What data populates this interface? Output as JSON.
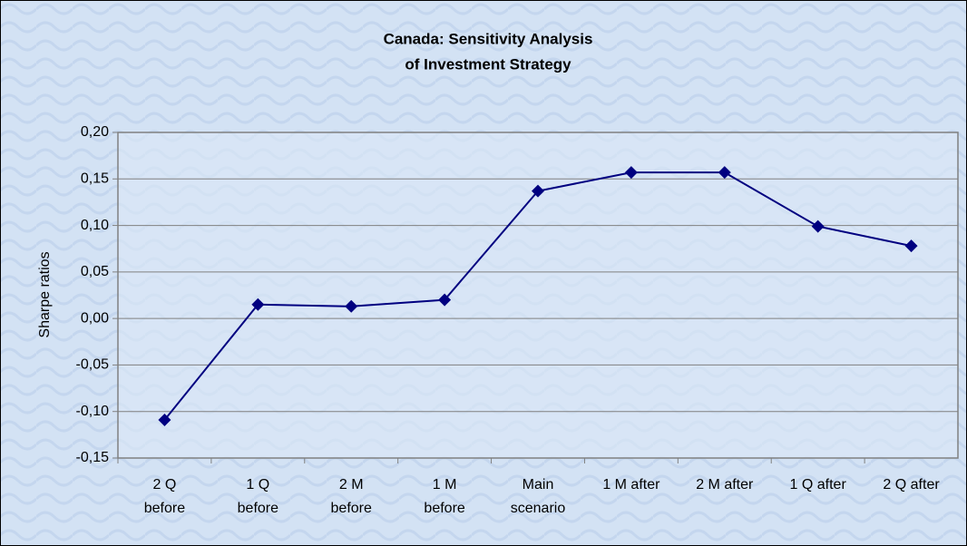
{
  "chart_data": {
    "type": "line",
    "title": [
      "Canada: Sensitivity Analysis",
      "of Investment Strategy"
    ],
    "y_label": "Sharpe ratios",
    "categories": [
      [
        "2 Q",
        "before"
      ],
      [
        "1 Q",
        "before"
      ],
      [
        "2 M",
        "before"
      ],
      [
        "1 M",
        "before"
      ],
      [
        "Main",
        "scenario"
      ],
      [
        "1 M after"
      ],
      [
        "2 M after"
      ],
      [
        "1 Q after"
      ],
      [
        "2 Q after"
      ]
    ],
    "series": [
      {
        "color": "#000080",
        "values": [
          -0.109,
          0.015,
          0.013,
          0.02,
          0.137,
          0.157,
          0.157,
          0.099,
          0.078
        ]
      }
    ],
    "ylim": [
      -0.15,
      0.2
    ],
    "yticks": [
      {
        "value": -0.15,
        "label": "-0,15"
      },
      {
        "value": -0.1,
        "label": "-0,10"
      },
      {
        "value": -0.05,
        "label": "-0,05"
      },
      {
        "value": 0,
        "label": "0,00"
      },
      {
        "value": 0.05,
        "label": "0,05"
      },
      {
        "value": 0.1,
        "label": "0,10"
      },
      {
        "value": 0.15,
        "label": "0,15"
      },
      {
        "value": 0.2,
        "label": "0,20"
      }
    ],
    "grid": true
  }
}
